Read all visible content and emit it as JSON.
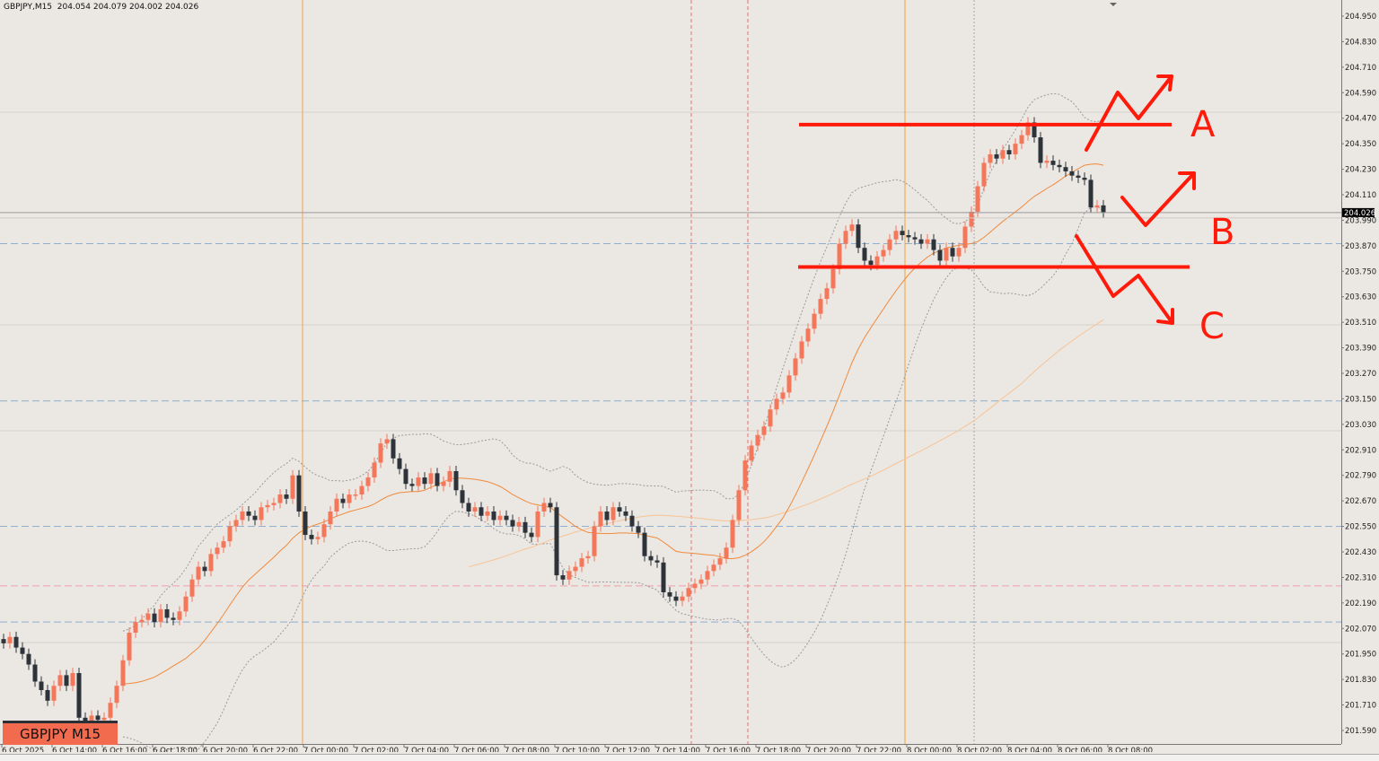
{
  "header": {
    "symbol": "GBPJPY,M15",
    "ohlc": "204.054 204.079 204.002 204.026"
  },
  "badge": "GBPJPY M15",
  "colors": {
    "bull": "#f4775a",
    "bear": "#2d3339",
    "ma_fast": "#f08a3c",
    "ma_slow": "#f7c495",
    "bands": "#9a9a9a",
    "annotation": "#ff1a0a",
    "background": "#ebe7e3"
  },
  "chart_data": {
    "type": "candlestick",
    "symbol": "GBPJPY",
    "timeframe": "M15",
    "ylim": [
      201.53,
      205.0
    ],
    "y_ticks": [
      "204.950",
      "204.830",
      "204.710",
      "204.590",
      "204.470",
      "204.350",
      "204.230",
      "204.110",
      "203.990",
      "203.870",
      "203.750",
      "203.630",
      "203.510",
      "203.390",
      "203.270",
      "203.150",
      "203.030",
      "202.910",
      "202.790",
      "202.670",
      "202.550",
      "202.430",
      "202.310",
      "202.190",
      "202.070",
      "201.950",
      "201.830",
      "201.710",
      "201.590"
    ],
    "x_ticks": [
      "6 Oct 2025",
      "6 Oct 14:00",
      "6 Oct 16:00",
      "6 Oct 18:00",
      "6 Oct 20:00",
      "6 Oct 22:00",
      "7 Oct 00:00",
      "7 Oct 02:00",
      "7 Oct 04:00",
      "7 Oct 06:00",
      "7 Oct 08:00",
      "7 Oct 10:00",
      "7 Oct 12:00",
      "7 Oct 14:00",
      "7 Oct 16:00",
      "7 Oct 18:00",
      "7 Oct 20:00",
      "7 Oct 22:00",
      "8 Oct 00:00",
      "8 Oct 02:00",
      "8 Oct 04:00",
      "8 Oct 06:00",
      "8 Oct 08:00"
    ],
    "current_price": "204.026",
    "closes": [
      202.0,
      202.03,
      201.98,
      201.95,
      201.9,
      201.82,
      201.78,
      201.73,
      201.8,
      201.85,
      201.8,
      201.86,
      201.65,
      201.63,
      201.66,
      201.64,
      201.65,
      201.72,
      201.8,
      201.92,
      202.05,
      202.1,
      202.11,
      202.14,
      202.1,
      202.16,
      202.12,
      202.11,
      202.15,
      202.22,
      202.3,
      202.36,
      202.34,
      202.42,
      202.45,
      202.48,
      202.55,
      202.58,
      202.62,
      202.6,
      202.58,
      202.64,
      202.65,
      202.66,
      202.7,
      202.68,
      202.79,
      202.62,
      202.51,
      202.49,
      202.5,
      202.56,
      202.62,
      202.68,
      202.66,
      202.7,
      202.7,
      202.74,
      202.78,
      202.85,
      202.94,
      202.96,
      202.87,
      202.82,
      202.75,
      202.74,
      202.78,
      202.75,
      202.8,
      202.74,
      202.76,
      202.81,
      202.72,
      202.66,
      202.62,
      202.64,
      202.6,
      202.62,
      202.58,
      202.6,
      202.58,
      202.55,
      202.57,
      202.52,
      202.5,
      202.62,
      202.66,
      202.64,
      202.32,
      202.3,
      202.34,
      202.36,
      202.4,
      202.41,
      202.55,
      202.62,
      202.58,
      202.64,
      202.62,
      202.6,
      202.55,
      202.52,
      202.41,
      202.39,
      202.38,
      202.24,
      202.22,
      202.2,
      202.22,
      202.26,
      202.28,
      202.3,
      202.34,
      202.37,
      202.4,
      202.45,
      202.58,
      202.72,
      202.86,
      202.93,
      202.98,
      203.02,
      203.1,
      203.15,
      203.18,
      203.26,
      203.34,
      203.42,
      203.48,
      203.55,
      203.62,
      203.67,
      203.76,
      203.88,
      203.94,
      203.97,
      203.86,
      203.8,
      203.78,
      203.82,
      203.85,
      203.9,
      203.94,
      203.92,
      203.91,
      203.9,
      203.88,
      203.9,
      203.85,
      203.8,
      203.86,
      203.82,
      203.86,
      203.96,
      204.03,
      204.15,
      204.26,
      204.3,
      204.28,
      204.32,
      204.3,
      204.35,
      204.39,
      204.45,
      204.38,
      204.26,
      204.27,
      204.25,
      204.24,
      204.22,
      204.2,
      204.19,
      204.18,
      204.05,
      204.06,
      204.026
    ],
    "indicators": [
      "SMA 20",
      "Bollinger Bands 20,2",
      "SMA slow"
    ],
    "horizontal_levels": [
      {
        "price": 203.88,
        "style": "dashed",
        "color": "#8fb0d0"
      },
      {
        "price": 203.14,
        "style": "dashed",
        "color": "#8fb0d0"
      },
      {
        "price": 202.55,
        "style": "dashed",
        "color": "#8fb0d0"
      },
      {
        "price": 202.27,
        "style": "dashed",
        "color": "#f0a0a8"
      },
      {
        "price": 202.1,
        "style": "dashed",
        "color": "#8fb0d0"
      }
    ],
    "annotations": {
      "upper_line_price": 204.44,
      "lower_line_price": 203.77,
      "labels": [
        "A",
        "B",
        "C"
      ]
    }
  }
}
